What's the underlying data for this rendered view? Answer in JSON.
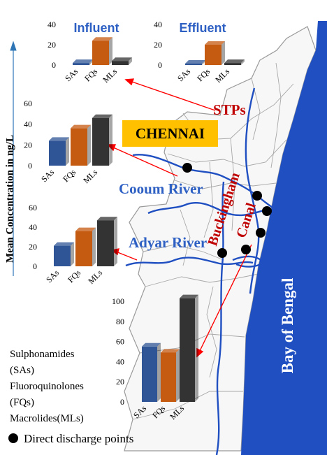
{
  "map": {
    "city_label": "CHENNAI",
    "sea_label": "Bay of Bengal",
    "rivers": [
      "Cooum River",
      "Adyar River"
    ],
    "canal_label_line1": "Buckingham",
    "canal_label_line2": "Canal",
    "stps_label": "STPs",
    "axis_title": "Mean Concentration in ng/L"
  },
  "legend": {
    "items": [
      "Sulphonamides",
      "(SAs)",
      "Fluoroquinolones",
      "(FQs)",
      "Macrolides(MLs)"
    ],
    "discharge_label": "Direct discharge points"
  },
  "colors": {
    "SAs": "#2f5597",
    "FQs": "#c55a11",
    "MLs": "#333333",
    "river": "#1f4fc1",
    "sea": "#1f4fc1",
    "canal_label": "#c00000",
    "arrow": "#ff0000",
    "city_box": "#ffc000"
  },
  "chart_data": [
    {
      "type": "bar",
      "title": "Influent",
      "categories": [
        "SAs",
        "FQs",
        "MLs"
      ],
      "values": [
        2,
        24,
        4
      ],
      "ylim": [
        0,
        40
      ],
      "yticks": [
        0,
        20,
        40
      ]
    },
    {
      "type": "bar",
      "title": "Effluent",
      "categories": [
        "SAs",
        "FQs",
        "MLs"
      ],
      "values": [
        1,
        20,
        2
      ],
      "ylim": [
        0,
        40
      ],
      "yticks": [
        0,
        20,
        40
      ]
    },
    {
      "type": "bar",
      "title": "",
      "categories": [
        "SAs",
        "FQs",
        "MLs"
      ],
      "values": [
        24,
        36,
        46
      ],
      "ylim": [
        0,
        60
      ],
      "yticks": [
        0,
        20,
        40,
        60
      ]
    },
    {
      "type": "bar",
      "title": "",
      "categories": [
        "SAs",
        "FQs",
        "MLs"
      ],
      "values": [
        21,
        36,
        47
      ],
      "ylim": [
        0,
        60
      ],
      "yticks": [
        0,
        20,
        40,
        60
      ]
    },
    {
      "type": "bar",
      "title": "",
      "categories": [
        "SAs",
        "FQs",
        "MLs"
      ],
      "values": [
        55,
        49,
        103
      ],
      "ylim": [
        0,
        100
      ],
      "yticks": [
        0,
        20,
        40,
        60,
        80,
        100
      ]
    }
  ]
}
